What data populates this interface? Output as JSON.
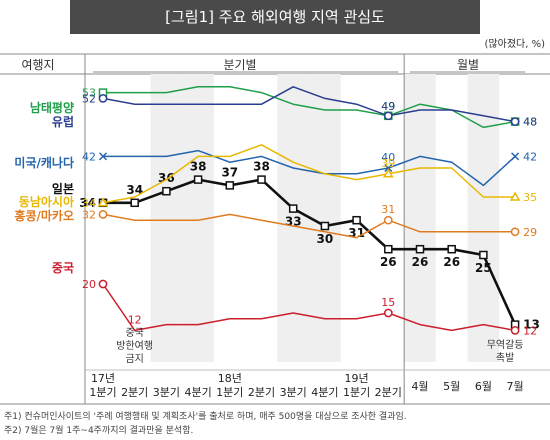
{
  "figure": {
    "title": "[그림1]  주요 해외여행 지역 관심도",
    "unit": "(많아졌다, %)",
    "row_header": "여행지",
    "group_quarterly": "분기별",
    "group_monthly": "월별",
    "annotation_china": "중국\n방한여행\n금지",
    "annotation_trade": "무역갈등\n촉발",
    "footnotes": [
      "주1) 컨슈머인사이트의 '주례 여행행태 및 계획조사'를 출처로 하며, 매주 500명을 대상으로 조사한 결과임.",
      "주2) 7월은 7월 1주~4주까지의 결과만을 분석함."
    ]
  },
  "chart_data": {
    "type": "line",
    "periods": [
      "17년 1분기",
      "2분기",
      "3분기",
      "4분기",
      "18년 1분기",
      "2분기",
      "3분기",
      "4분기",
      "19년 1분기",
      "2분기",
      "4월",
      "5월",
      "6월",
      "7월"
    ],
    "x_labels": [
      "1분기",
      "2분기",
      "3분기",
      "4분기",
      "1분기",
      "2분기",
      "3분기",
      "4분기",
      "1분기",
      "2분기",
      "4월",
      "5월",
      "6월",
      "7월"
    ],
    "year_labels": [
      {
        "label": "17년",
        "index": 0
      },
      {
        "label": "18년",
        "index": 4
      },
      {
        "label": "19년",
        "index": 8
      }
    ],
    "ylim": [
      0,
      60
    ],
    "series": [
      {
        "name": "남태평양",
        "color": "#1f9f4a",
        "marker": "square-open",
        "values": [
          53,
          53,
          53,
          54,
          54,
          53,
          51,
          50,
          50,
          49,
          51,
          50,
          47,
          48
        ],
        "labels": {
          "0": "53",
          "9": "49",
          "13": "48"
        }
      },
      {
        "name": "유럽",
        "color": "#2a3d8f",
        "marker": "circle-open",
        "values": [
          52,
          51,
          51,
          51,
          51,
          51,
          54,
          52,
          51,
          49,
          50,
          50,
          49,
          48
        ],
        "labels": {
          "0": "52",
          "9": "49",
          "13": "48"
        }
      },
      {
        "name": "미국/캐나다",
        "color": "#2464ad",
        "marker": "x",
        "values": [
          42,
          42,
          42,
          43,
          41,
          42,
          40,
          39,
          39,
          40,
          42,
          41,
          37,
          42
        ],
        "labels": {
          "0": "42",
          "9": "40",
          "13": "42"
        }
      },
      {
        "name": "일본",
        "color": "#111111",
        "marker": "square-open",
        "bold": true,
        "values": [
          34,
          34,
          36,
          38,
          37,
          38,
          33,
          30,
          31,
          26,
          26,
          26,
          25,
          13
        ],
        "labels": {
          "0": "34",
          "1": "34",
          "2": "36",
          "3": "38",
          "4": "37",
          "5": "38",
          "6": "33",
          "7": "30",
          "8": "31",
          "9": "26",
          "10": "26",
          "11": "26",
          "12": "25",
          "13": "13"
        }
      },
      {
        "name": "동남아시아",
        "color": "#e8b800",
        "marker": "triangle-open",
        "values": [
          34,
          35,
          38,
          42,
          42,
          44,
          41,
          39,
          38,
          39,
          40,
          40,
          35,
          35
        ],
        "labels": {
          "0": "34",
          "9": "39",
          "13": "35"
        }
      },
      {
        "name": "홍콩/마카오",
        "color": "#e07b20",
        "marker": "circle-open",
        "values": [
          32,
          31,
          31,
          31,
          32,
          31,
          30,
          29,
          28,
          31,
          29,
          29,
          29,
          29
        ],
        "labels": {
          "0": "32",
          "9": "31",
          "13": "29"
        }
      },
      {
        "name": "중국",
        "color": "#cc1f2b",
        "marker": "circle-open",
        "values": [
          20,
          12,
          13,
          13,
          14,
          14,
          15,
          14,
          14,
          15,
          13,
          12,
          13,
          12
        ],
        "labels": {
          "0": "20",
          "1": "12",
          "9": "15",
          "13": "12"
        }
      }
    ]
  }
}
